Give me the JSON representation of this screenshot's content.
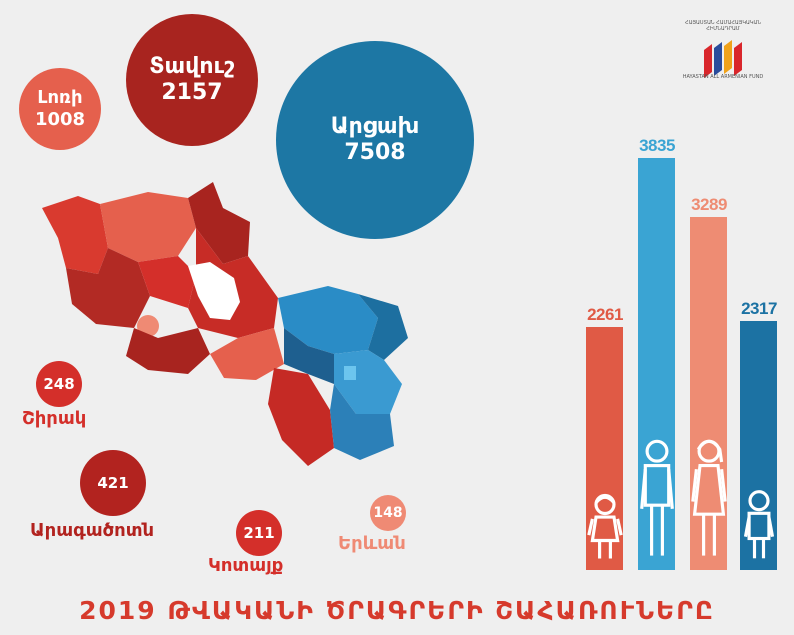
{
  "title": "2019 ԹՎԱԿԱՆԻ ԾՐԱԳՐԵՐԻ ՇԱՀԱՌՈՒՆԵՐԸ",
  "logo": {
    "text_top": "ՀԱՅԱՍՏԱՆ ՀԱՄԱՀԱՅԿԱԿԱՆ ՀԻՄՆԱԴՐԱՄ",
    "text_bottom": "HAYASTAN ALL ARMENIAN FUND"
  },
  "big_bubbles": [
    {
      "name": "Լոռի",
      "value": "1008",
      "color": "#e5604d"
    },
    {
      "name": "Տավուշ",
      "value": "2157",
      "color": "#a8241f"
    },
    {
      "name": "Արցախ",
      "value": "7508",
      "color": "#1d77a4"
    }
  ],
  "small_bubbles": [
    {
      "name": "Շիրակ",
      "value": "248",
      "color": "#d42f2a"
    },
    {
      "name": "Արագածոտն",
      "value": "421",
      "color": "#b2231f"
    },
    {
      "name": "Կոտայք",
      "value": "211",
      "color": "#d42f2a"
    },
    {
      "name": "Երևան",
      "value": "148",
      "color": "#ef8a74"
    }
  ],
  "bars": [
    {
      "value": "2261",
      "fraction": 0.59,
      "color": "#e05a45",
      "figure": "girl"
    },
    {
      "value": "3835",
      "fraction": 1.0,
      "color": "#3aa4d3",
      "figure": "man"
    },
    {
      "value": "3289",
      "fraction": 0.858,
      "color": "#ee8c73",
      "figure": "woman"
    },
    {
      "value": "2317",
      "fraction": 0.604,
      "color": "#1c72a3",
      "figure": "boy"
    }
  ],
  "colors": {
    "title": "#d63a2c",
    "background": "#efefef"
  }
}
